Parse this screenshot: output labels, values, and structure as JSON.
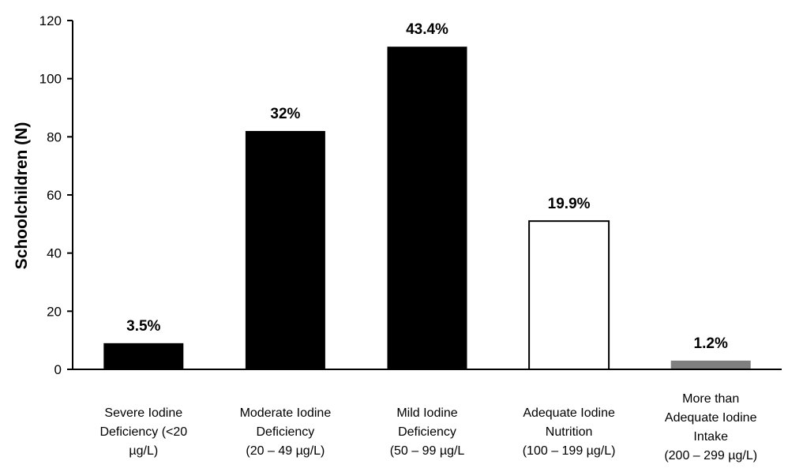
{
  "chart_data": {
    "type": "bar",
    "title": "",
    "xlabel": "",
    "ylabel": "Schoolchildren (N)",
    "ylim": [
      0,
      120
    ],
    "yticks": [
      0,
      20,
      40,
      60,
      80,
      100,
      120
    ],
    "grid": false,
    "categories": [
      [
        "Severe Iodine",
        "Deficiency (<20",
        "µg/L)"
      ],
      [
        "Moderate Iodine",
        "Deficiency",
        "(20 – 49 µg/L)"
      ],
      [
        "Mild Iodine",
        "Deficiency",
        "(50 – 99 µg/L"
      ],
      [
        "Adequate Iodine",
        "Nutrition",
        "(100 – 199 µg/L)"
      ],
      [
        "More than",
        "Adequate Iodine",
        "Intake",
        "(200 – 299 µg/L)"
      ]
    ],
    "values": [
      9,
      82,
      111,
      51,
      3
    ],
    "data_labels": [
      "3.5%",
      "32%",
      "43.4%",
      "19.9%",
      "1.2%"
    ],
    "bar_colors": [
      "#000000",
      "#000000",
      "#000000",
      "#ffffff",
      "#7f7f7f"
    ]
  }
}
